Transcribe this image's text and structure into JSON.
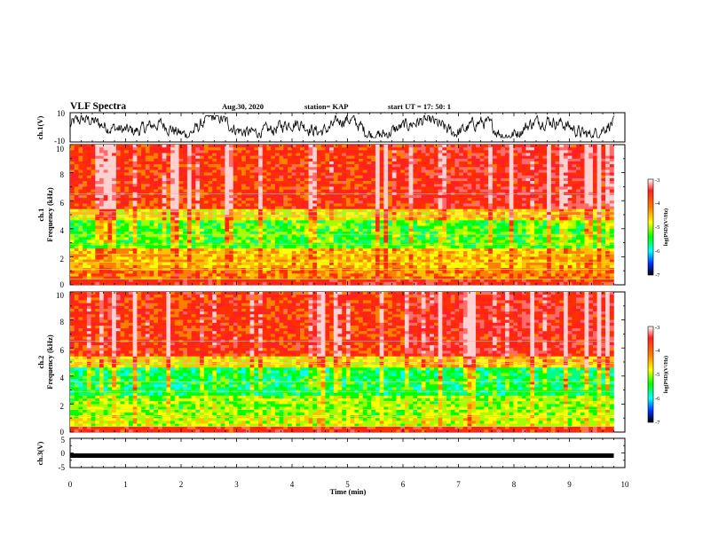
{
  "header": {
    "title": "VLF Spectra",
    "date": "Aug.30, 2020",
    "station": "station= KAP",
    "start": "start  UT =   17: 50: 1"
  },
  "chart_data": [
    {
      "type": "line",
      "name": "ch1-waveform",
      "ylabel": "ch.1(V)",
      "ylim": [
        -10,
        10
      ],
      "yticks": [
        "10",
        "-10"
      ],
      "xlim": [
        0,
        10
      ],
      "x_end": 9.8,
      "approx_range": [
        -7,
        8
      ]
    },
    {
      "type": "heatmap",
      "name": "ch1-spectrogram",
      "ylabel_line1": "ch.1",
      "ylabel_line2": "Frequency  (kHz)",
      "ylim": [
        0,
        10
      ],
      "yticks": [
        "0",
        "2",
        "4",
        "6",
        "8",
        "10"
      ],
      "xlim": [
        0,
        10
      ],
      "x_end": 9.8,
      "colorbar": {
        "label": "log(PSD)(V²/Hz)",
        "range": [
          -7,
          -3
        ],
        "ticks": [
          "-3",
          "-4",
          "-5",
          "-6",
          "-7"
        ]
      }
    },
    {
      "type": "heatmap",
      "name": "ch2-spectrogram",
      "ylabel_line1": "ch.2",
      "ylabel_line2": "Frequency  (kHz)",
      "ylim": [
        0,
        10
      ],
      "yticks": [
        "0",
        "2",
        "4",
        "6",
        "8",
        "10"
      ],
      "xlim": [
        0,
        10
      ],
      "x_end": 9.8,
      "colorbar": {
        "label": "log(PSD)(V²/Hz)",
        "range": [
          -7,
          -3
        ],
        "ticks": [
          "-3",
          "-4",
          "-5",
          "-6",
          "-7"
        ]
      }
    },
    {
      "type": "line",
      "name": "ch3-waveform",
      "ylabel": "ch.3(V)",
      "ylim": [
        -5,
        5
      ],
      "yticks": [
        "5",
        "0",
        "-5"
      ],
      "xlim": [
        0,
        10
      ],
      "x_end": 9.8,
      "approx_level": -0.9
    }
  ],
  "xaxis": {
    "label": "Time  (min)",
    "ticks": [
      "0",
      "1",
      "2",
      "3",
      "4",
      "5",
      "6",
      "7",
      "8",
      "9",
      "10"
    ]
  }
}
